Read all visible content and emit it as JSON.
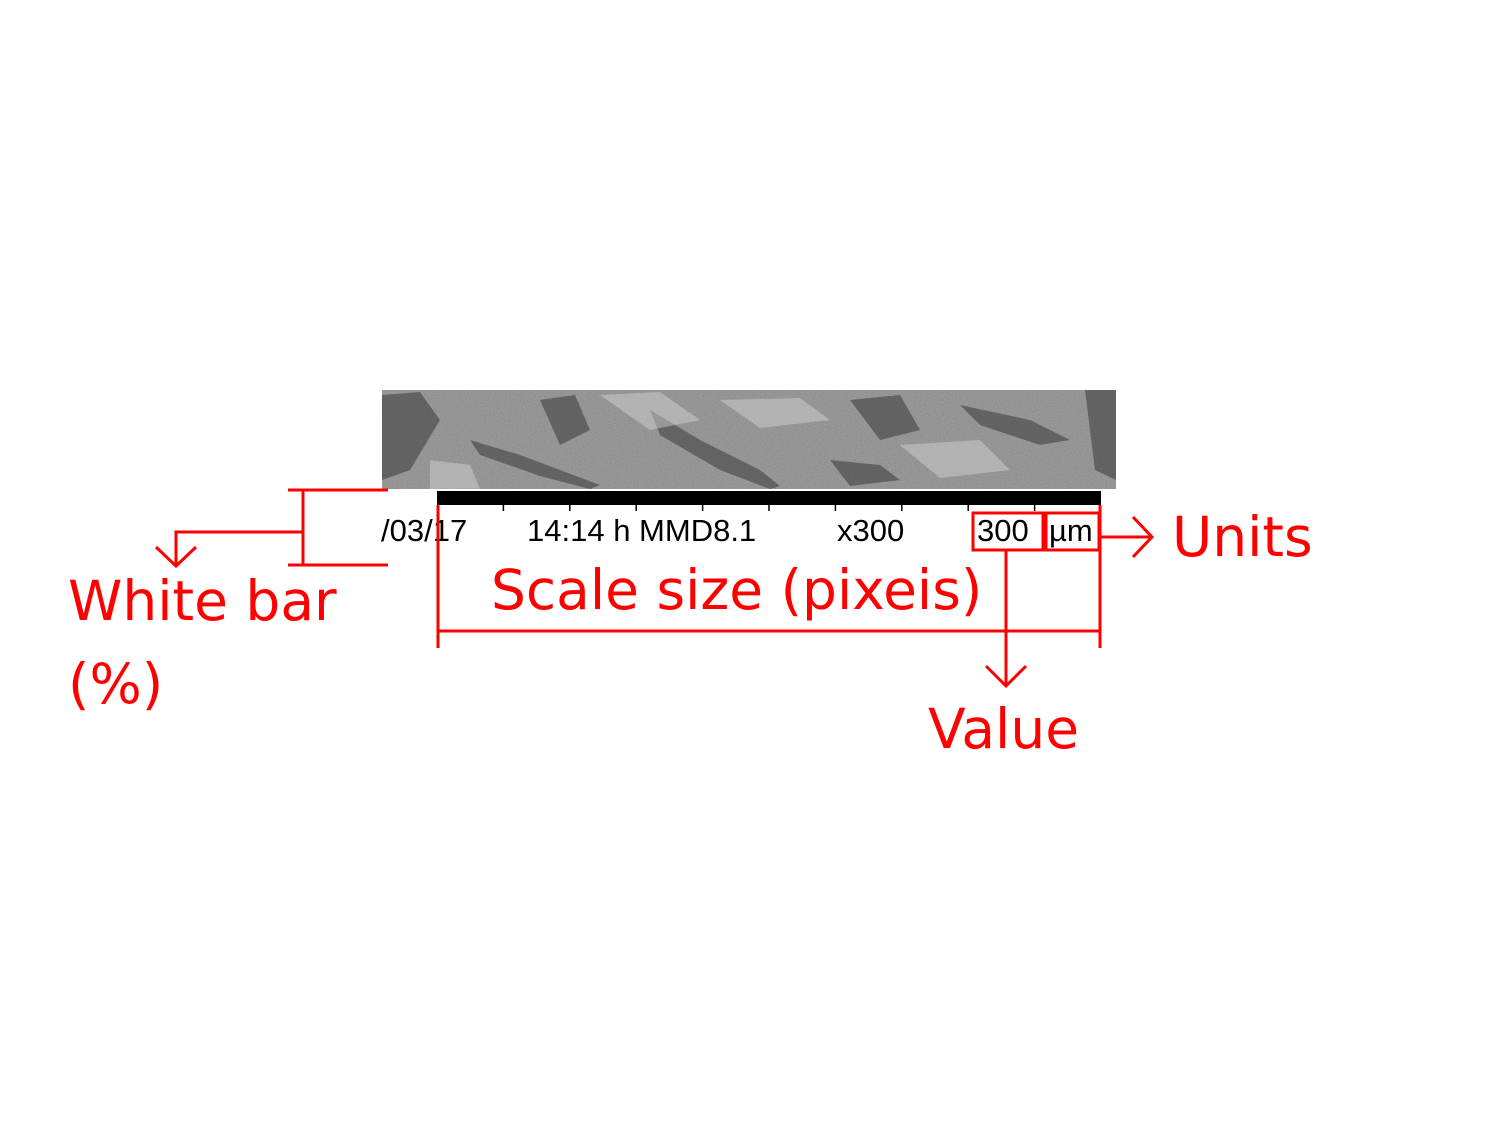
{
  "colors": {
    "annotation": "#ff0000",
    "text": "#000000",
    "scale_bar": "#000000",
    "background": "#ffffff",
    "micrograph_base": "#8a8a8a"
  },
  "image": {
    "icon": "sem-micrograph-strip"
  },
  "info_bar": {
    "date": "/03/17",
    "time_mode": "14:14 h MMD8.1",
    "magnification": "x300",
    "scale_value": "300",
    "scale_unit": "µm"
  },
  "annotations": {
    "white_bar_line1": "White bar",
    "white_bar_line2": "(%)",
    "scale_size": "Scale size (pixeis)",
    "value": "Value",
    "units": "Units"
  }
}
